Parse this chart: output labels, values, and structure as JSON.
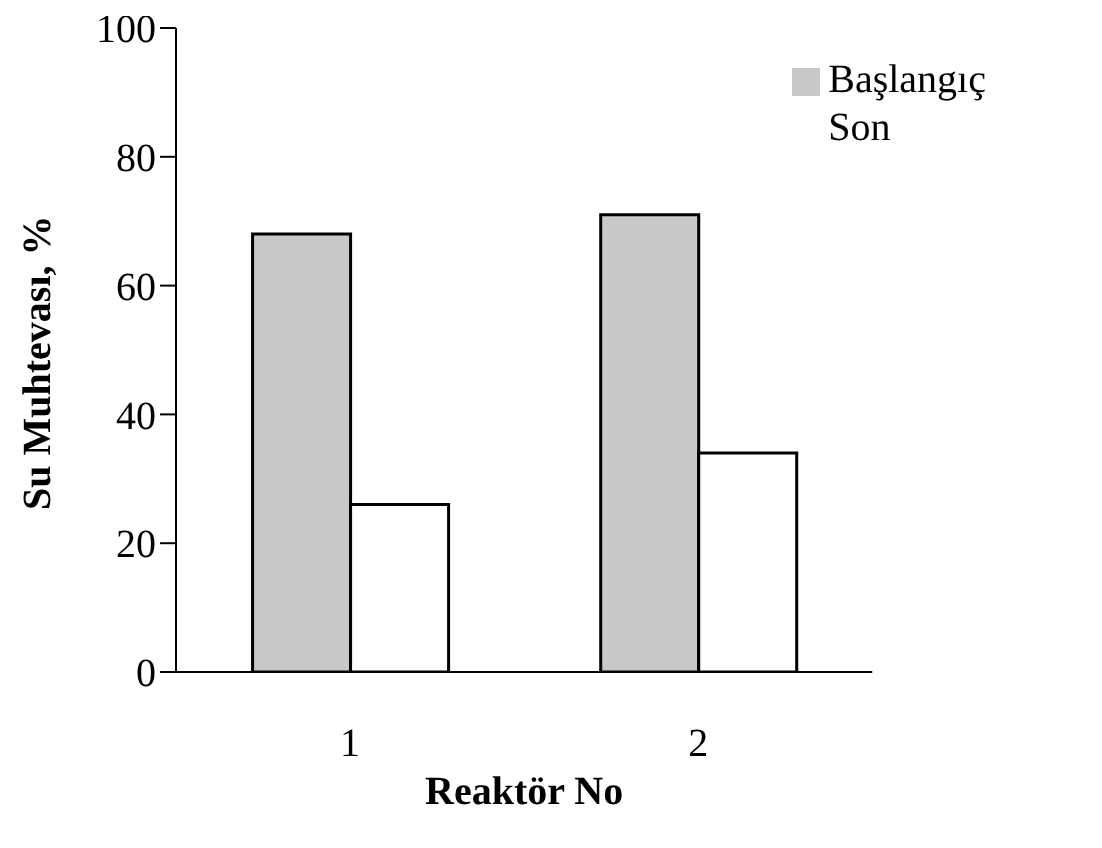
{
  "chart_data": {
    "type": "bar",
    "xlabel": "Reaktör No",
    "ylabel": "Su Muhtevası, %",
    "categories": [
      "1",
      "2"
    ],
    "series": [
      {
        "name": "Başlangıç",
        "color": "#c8c8c8",
        "values": [
          68,
          71
        ]
      },
      {
        "name": "Son",
        "color": "#ffffff",
        "values": [
          26,
          34
        ]
      }
    ],
    "ylim": [
      0,
      100
    ],
    "yticks": [
      0,
      20,
      40,
      60,
      80,
      100
    ],
    "legend": "top right",
    "grid": false
  }
}
